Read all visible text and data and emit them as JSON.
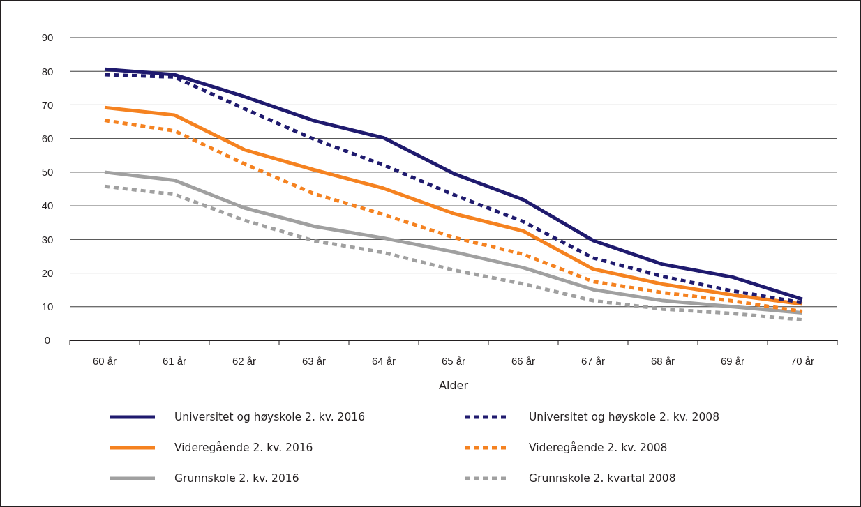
{
  "chart_data": {
    "type": "line",
    "xlabel": "Alder",
    "categories": [
      "60 år",
      "61 år",
      "62 år",
      "63 år",
      "64 år",
      "65 år",
      "66 år",
      "67 år",
      "68 år",
      "69 år",
      "70 år"
    ],
    "ylim": [
      0,
      90
    ],
    "yticks": [
      0,
      10,
      20,
      30,
      40,
      50,
      60,
      70,
      80,
      90
    ],
    "grid": "y",
    "legend": "bottom",
    "marker": "none",
    "series": [
      {
        "name": "Universitet og høyskole 2. kv. 2016",
        "color": "#1f1a6e",
        "line_style": "solid",
        "values": [
          80.6,
          79,
          72.5,
          65.3,
          60.2,
          49.6,
          41.8,
          29.7,
          22.6,
          18.8,
          12.2
        ]
      },
      {
        "name": "Universitet og høyskole 2. kv. 2008",
        "color": "#1f1a6e",
        "line_style": "dashed",
        "values": [
          79,
          78.3,
          68.9,
          59.8,
          52.1,
          43.3,
          35.3,
          24.5,
          19.0,
          14.7,
          11.2
        ]
      },
      {
        "name": "Videregående 2. kv. 2016",
        "color": "#f58220",
        "line_style": "solid",
        "values": [
          69.2,
          67,
          56.7,
          50.7,
          45.2,
          37.7,
          32.5,
          21.2,
          16.7,
          13.5,
          10.8
        ]
      },
      {
        "name": "Videregående 2. kv. 2008",
        "color": "#f58220",
        "line_style": "dashed",
        "values": [
          65.4,
          62.3,
          52.5,
          43.6,
          37.4,
          30.6,
          25.6,
          17.5,
          14.2,
          11.7,
          8.6
        ]
      },
      {
        "name": "Grunnskole 2. kv. 2016",
        "color": "#a0a0a0",
        "line_style": "solid",
        "values": [
          50,
          47.6,
          39.4,
          33.9,
          30.4,
          26.3,
          21.6,
          15.1,
          11.8,
          10.0,
          8.2
        ]
      },
      {
        "name": "Grunnskole 2. kvartal 2008",
        "color": "#a0a0a0",
        "line_style": "dashed",
        "values": [
          45.8,
          43.4,
          35.7,
          29.6,
          26.1,
          20.9,
          16.8,
          11.8,
          9.3,
          8.0,
          6.1
        ]
      }
    ]
  }
}
